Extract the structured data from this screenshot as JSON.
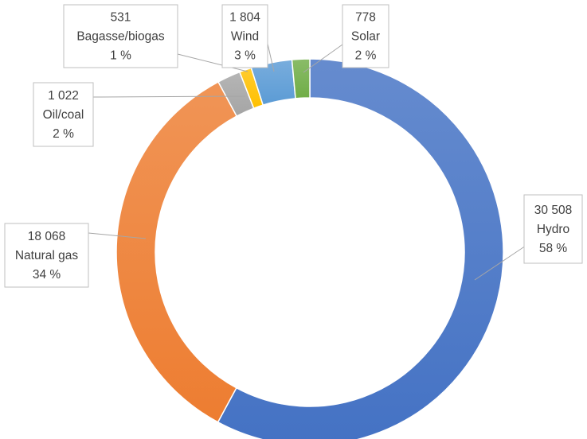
{
  "chart_data": {
    "type": "doughnut",
    "title": "",
    "total_label": "",
    "slices": [
      {
        "category": "Hydro",
        "value": "30 508",
        "value_num": 30508,
        "percent": "58 %",
        "color": "#4472c4"
      },
      {
        "category": "Natural gas",
        "value": "18 068",
        "value_num": 18068,
        "percent": "34 %",
        "color": "#ed7d31"
      },
      {
        "category": "Oil/coal",
        "value": "1 022",
        "value_num": 1022,
        "percent": "2 %",
        "color": "#a5a5a5"
      },
      {
        "category": "Bagasse/biogas",
        "value": "531",
        "value_num": 531,
        "percent": "1 %",
        "color": "#ffc000"
      },
      {
        "category": "Wind",
        "value": "1 804",
        "value_num": 1804,
        "percent": "3 %",
        "color": "#5b9bd5"
      },
      {
        "category": "Solar",
        "value": "778",
        "value_num": 778,
        "percent": "2 %",
        "color": "#70ad47"
      }
    ],
    "legend": "none"
  }
}
